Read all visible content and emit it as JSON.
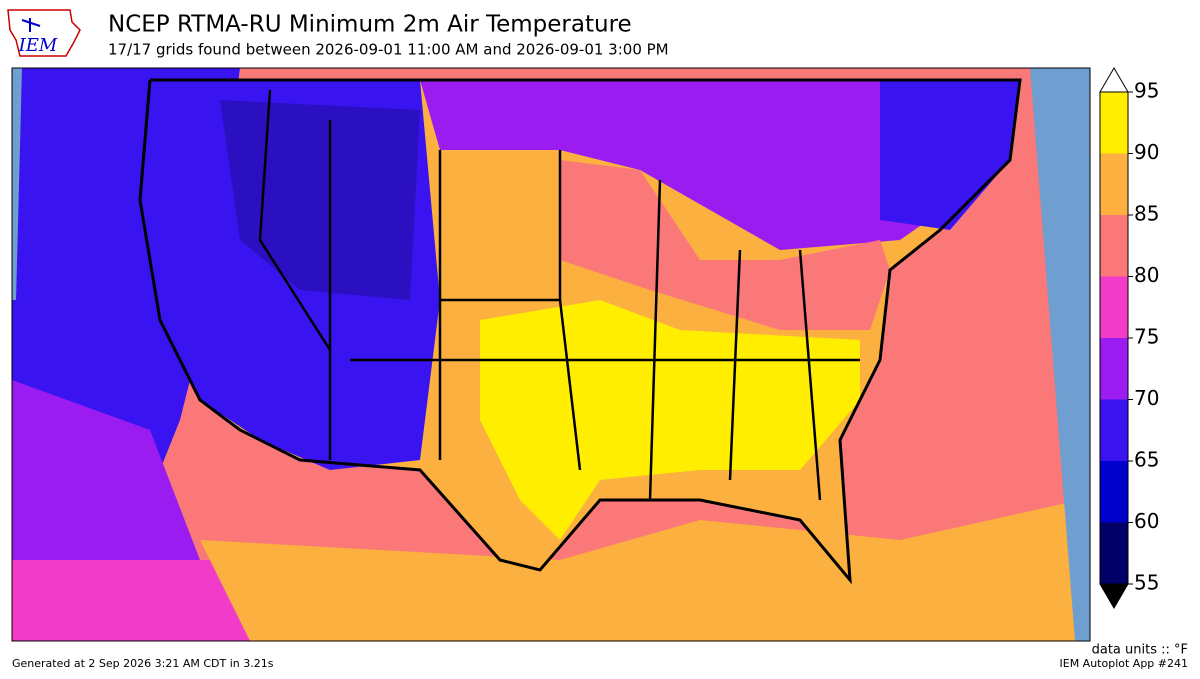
{
  "header": {
    "logo": "IEM",
    "title": "NCEP RTMA-RU Minimum 2m Air Temperature",
    "subtitle": "17/17 grids found between 2026-09-01 11:00 AM and 2026-09-01 3:00 PM"
  },
  "colorbar": {
    "levels": [
      55,
      60,
      65,
      70,
      75,
      80,
      85,
      90,
      95
    ],
    "colors": [
      "#000066",
      "#0000cc",
      "#3a14f0",
      "#9a1cf0",
      "#f03cc8",
      "#fa7878",
      "#fbb040",
      "#ffee00"
    ],
    "under_color": "#000000",
    "over_color": "#ffffff",
    "units": "data units :: °F"
  },
  "footer": {
    "generated": "Generated at 2 Sep 2026 3:21 AM CDT in 3.21s",
    "app": "IEM Autoplot App #241"
  }
}
